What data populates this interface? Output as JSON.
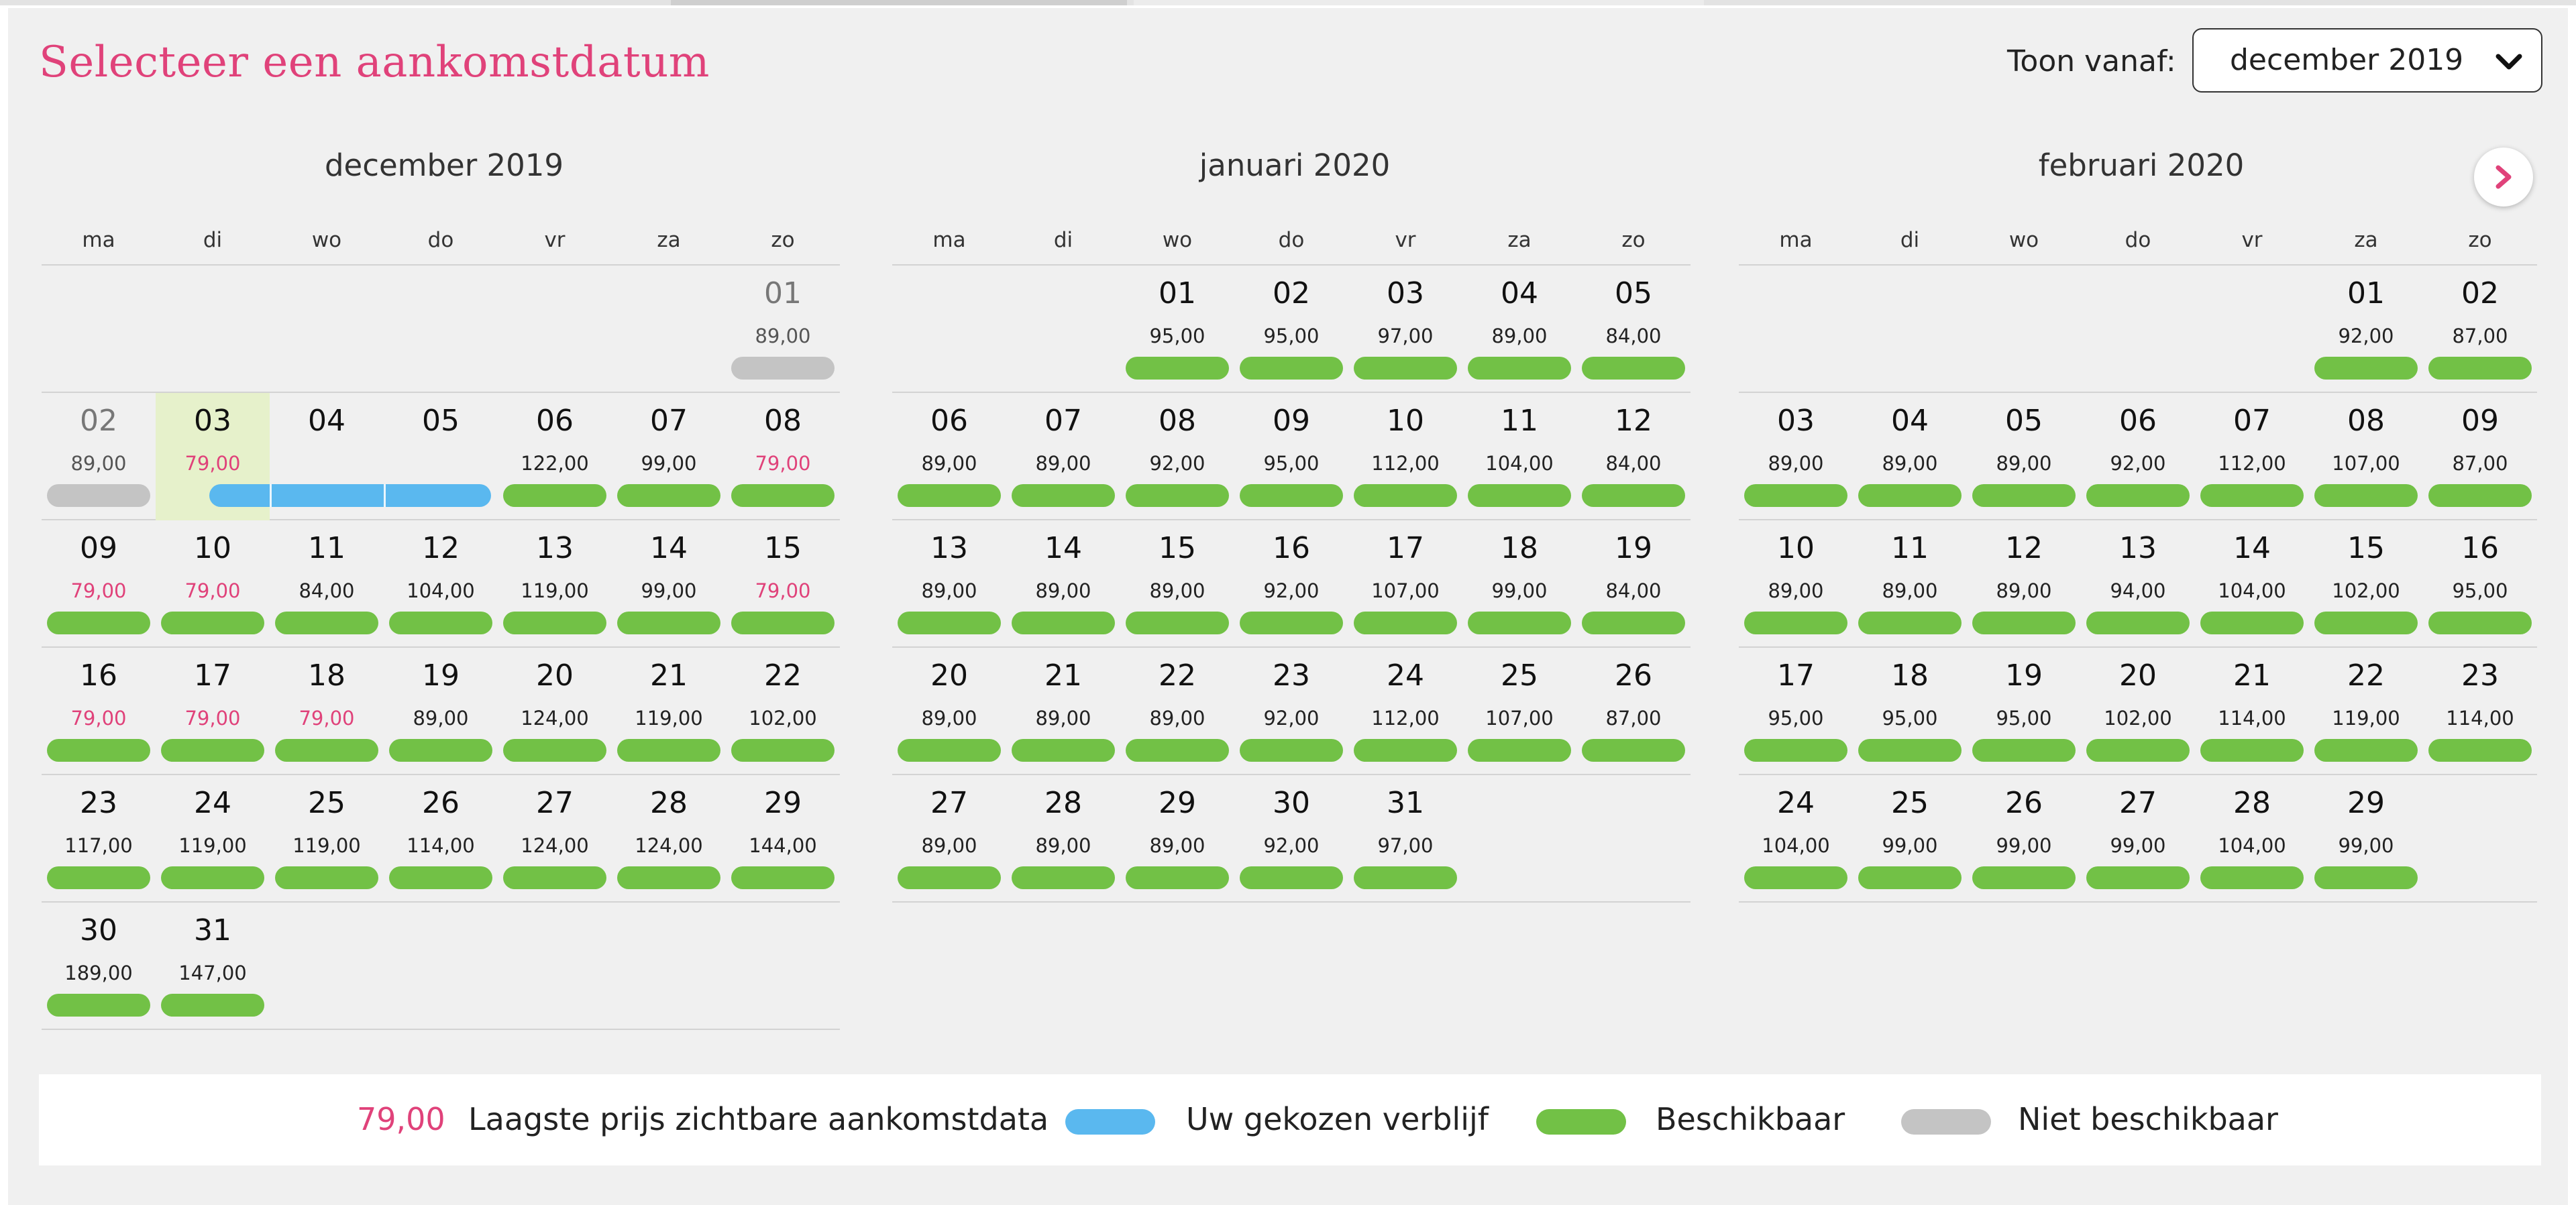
{
  "header": {
    "title": "Selecteer een aankomstdatum",
    "toon_label": "Toon vanaf:",
    "toon_value": "december 2019"
  },
  "weekdays": [
    "ma",
    "di",
    "wo",
    "do",
    "vr",
    "za",
    "zo"
  ],
  "months": [
    {
      "name": "december 2019",
      "days": [
        {
          "d": "01",
          "p": "89,00",
          "s": "na",
          "r": 0,
          "c": 6
        },
        {
          "d": "02",
          "p": "89,00",
          "s": "na",
          "r": 1,
          "c": 0
        },
        {
          "d": "03",
          "p": "79,00",
          "s": "chosen-start",
          "low": true,
          "r": 1,
          "c": 1
        },
        {
          "d": "04",
          "p": "",
          "s": "chosen",
          "r": 1,
          "c": 2
        },
        {
          "d": "05",
          "p": "",
          "s": "chosen",
          "r": 1,
          "c": 3
        },
        {
          "d": "06",
          "p": "122,00",
          "s": "av",
          "r": 1,
          "c": 4
        },
        {
          "d": "07",
          "p": "99,00",
          "s": "av",
          "r": 1,
          "c": 5
        },
        {
          "d": "08",
          "p": "79,00",
          "s": "av",
          "low": true,
          "r": 1,
          "c": 6
        },
        {
          "d": "09",
          "p": "79,00",
          "s": "av",
          "low": true,
          "r": 2,
          "c": 0
        },
        {
          "d": "10",
          "p": "79,00",
          "s": "av",
          "low": true,
          "r": 2,
          "c": 1
        },
        {
          "d": "11",
          "p": "84,00",
          "s": "av",
          "r": 2,
          "c": 2
        },
        {
          "d": "12",
          "p": "104,00",
          "s": "av",
          "r": 2,
          "c": 3
        },
        {
          "d": "13",
          "p": "119,00",
          "s": "av",
          "r": 2,
          "c": 4
        },
        {
          "d": "14",
          "p": "99,00",
          "s": "av",
          "r": 2,
          "c": 5
        },
        {
          "d": "15",
          "p": "79,00",
          "s": "av",
          "low": true,
          "r": 2,
          "c": 6
        },
        {
          "d": "16",
          "p": "79,00",
          "s": "av",
          "low": true,
          "r": 3,
          "c": 0
        },
        {
          "d": "17",
          "p": "79,00",
          "s": "av",
          "low": true,
          "r": 3,
          "c": 1
        },
        {
          "d": "18",
          "p": "79,00",
          "s": "av",
          "low": true,
          "r": 3,
          "c": 2
        },
        {
          "d": "19",
          "p": "89,00",
          "s": "av",
          "r": 3,
          "c": 3
        },
        {
          "d": "20",
          "p": "124,00",
          "s": "av",
          "r": 3,
          "c": 4
        },
        {
          "d": "21",
          "p": "119,00",
          "s": "av",
          "r": 3,
          "c": 5
        },
        {
          "d": "22",
          "p": "102,00",
          "s": "av",
          "r": 3,
          "c": 6
        },
        {
          "d": "23",
          "p": "117,00",
          "s": "av",
          "r": 4,
          "c": 0
        },
        {
          "d": "24",
          "p": "119,00",
          "s": "av",
          "r": 4,
          "c": 1
        },
        {
          "d": "25",
          "p": "119,00",
          "s": "av",
          "r": 4,
          "c": 2
        },
        {
          "d": "26",
          "p": "114,00",
          "s": "av",
          "r": 4,
          "c": 3
        },
        {
          "d": "27",
          "p": "124,00",
          "s": "av",
          "r": 4,
          "c": 4
        },
        {
          "d": "28",
          "p": "124,00",
          "s": "av",
          "r": 4,
          "c": 5
        },
        {
          "d": "29",
          "p": "144,00",
          "s": "av",
          "r": 4,
          "c": 6
        },
        {
          "d": "30",
          "p": "189,00",
          "s": "av",
          "r": 5,
          "c": 0
        },
        {
          "d": "31",
          "p": "147,00",
          "s": "av",
          "r": 5,
          "c": 1
        }
      ]
    },
    {
      "name": "januari 2020",
      "days": [
        {
          "d": "01",
          "p": "95,00",
          "s": "av",
          "r": 0,
          "c": 2
        },
        {
          "d": "02",
          "p": "95,00",
          "s": "av",
          "r": 0,
          "c": 3
        },
        {
          "d": "03",
          "p": "97,00",
          "s": "av",
          "r": 0,
          "c": 4
        },
        {
          "d": "04",
          "p": "89,00",
          "s": "av",
          "r": 0,
          "c": 5
        },
        {
          "d": "05",
          "p": "84,00",
          "s": "av",
          "r": 0,
          "c": 6
        },
        {
          "d": "06",
          "p": "89,00",
          "s": "av",
          "r": 1,
          "c": 0
        },
        {
          "d": "07",
          "p": "89,00",
          "s": "av",
          "r": 1,
          "c": 1
        },
        {
          "d": "08",
          "p": "92,00",
          "s": "av",
          "r": 1,
          "c": 2
        },
        {
          "d": "09",
          "p": "95,00",
          "s": "av",
          "r": 1,
          "c": 3
        },
        {
          "d": "10",
          "p": "112,00",
          "s": "av",
          "r": 1,
          "c": 4
        },
        {
          "d": "11",
          "p": "104,00",
          "s": "av",
          "r": 1,
          "c": 5
        },
        {
          "d": "12",
          "p": "84,00",
          "s": "av",
          "r": 1,
          "c": 6
        },
        {
          "d": "13",
          "p": "89,00",
          "s": "av",
          "r": 2,
          "c": 0
        },
        {
          "d": "14",
          "p": "89,00",
          "s": "av",
          "r": 2,
          "c": 1
        },
        {
          "d": "15",
          "p": "89,00",
          "s": "av",
          "r": 2,
          "c": 2
        },
        {
          "d": "16",
          "p": "92,00",
          "s": "av",
          "r": 2,
          "c": 3
        },
        {
          "d": "17",
          "p": "107,00",
          "s": "av",
          "r": 2,
          "c": 4
        },
        {
          "d": "18",
          "p": "99,00",
          "s": "av",
          "r": 2,
          "c": 5
        },
        {
          "d": "19",
          "p": "84,00",
          "s": "av",
          "r": 2,
          "c": 6
        },
        {
          "d": "20",
          "p": "89,00",
          "s": "av",
          "r": 3,
          "c": 0
        },
        {
          "d": "21",
          "p": "89,00",
          "s": "av",
          "r": 3,
          "c": 1
        },
        {
          "d": "22",
          "p": "89,00",
          "s": "av",
          "r": 3,
          "c": 2
        },
        {
          "d": "23",
          "p": "92,00",
          "s": "av",
          "r": 3,
          "c": 3
        },
        {
          "d": "24",
          "p": "112,00",
          "s": "av",
          "r": 3,
          "c": 4
        },
        {
          "d": "25",
          "p": "107,00",
          "s": "av",
          "r": 3,
          "c": 5
        },
        {
          "d": "26",
          "p": "87,00",
          "s": "av",
          "r": 3,
          "c": 6
        },
        {
          "d": "27",
          "p": "89,00",
          "s": "av",
          "r": 4,
          "c": 0
        },
        {
          "d": "28",
          "p": "89,00",
          "s": "av",
          "r": 4,
          "c": 1
        },
        {
          "d": "29",
          "p": "89,00",
          "s": "av",
          "r": 4,
          "c": 2
        },
        {
          "d": "30",
          "p": "92,00",
          "s": "av",
          "r": 4,
          "c": 3
        },
        {
          "d": "31",
          "p": "97,00",
          "s": "av",
          "r": 4,
          "c": 4
        }
      ]
    },
    {
      "name": "februari 2020",
      "days": [
        {
          "d": "01",
          "p": "92,00",
          "s": "av",
          "r": 0,
          "c": 5
        },
        {
          "d": "02",
          "p": "87,00",
          "s": "av",
          "r": 0,
          "c": 6
        },
        {
          "d": "03",
          "p": "89,00",
          "s": "av",
          "r": 1,
          "c": 0
        },
        {
          "d": "04",
          "p": "89,00",
          "s": "av",
          "r": 1,
          "c": 1
        },
        {
          "d": "05",
          "p": "89,00",
          "s": "av",
          "r": 1,
          "c": 2
        },
        {
          "d": "06",
          "p": "92,00",
          "s": "av",
          "r": 1,
          "c": 3
        },
        {
          "d": "07",
          "p": "112,00",
          "s": "av",
          "r": 1,
          "c": 4
        },
        {
          "d": "08",
          "p": "107,00",
          "s": "av",
          "r": 1,
          "c": 5
        },
        {
          "d": "09",
          "p": "87,00",
          "s": "av",
          "r": 1,
          "c": 6
        },
        {
          "d": "10",
          "p": "89,00",
          "s": "av",
          "r": 2,
          "c": 0
        },
        {
          "d": "11",
          "p": "89,00",
          "s": "av",
          "r": 2,
          "c": 1
        },
        {
          "d": "12",
          "p": "89,00",
          "s": "av",
          "r": 2,
          "c": 2
        },
        {
          "d": "13",
          "p": "94,00",
          "s": "av",
          "r": 2,
          "c": 3
        },
        {
          "d": "14",
          "p": "104,00",
          "s": "av",
          "r": 2,
          "c": 4
        },
        {
          "d": "15",
          "p": "102,00",
          "s": "av",
          "r": 2,
          "c": 5
        },
        {
          "d": "16",
          "p": "95,00",
          "s": "av",
          "r": 2,
          "c": 6
        },
        {
          "d": "17",
          "p": "95,00",
          "s": "av",
          "r": 3,
          "c": 0
        },
        {
          "d": "18",
          "p": "95,00",
          "s": "av",
          "r": 3,
          "c": 1
        },
        {
          "d": "19",
          "p": "95,00",
          "s": "av",
          "r": 3,
          "c": 2
        },
        {
          "d": "20",
          "p": "102,00",
          "s": "av",
          "r": 3,
          "c": 3
        },
        {
          "d": "21",
          "p": "114,00",
          "s": "av",
          "r": 3,
          "c": 4
        },
        {
          "d": "22",
          "p": "119,00",
          "s": "av",
          "r": 3,
          "c": 5
        },
        {
          "d": "23",
          "p": "114,00",
          "s": "av",
          "r": 3,
          "c": 6
        },
        {
          "d": "24",
          "p": "104,00",
          "s": "av",
          "r": 4,
          "c": 0
        },
        {
          "d": "25",
          "p": "99,00",
          "s": "av",
          "r": 4,
          "c": 1
        },
        {
          "d": "26",
          "p": "99,00",
          "s": "av",
          "r": 4,
          "c": 2
        },
        {
          "d": "27",
          "p": "99,00",
          "s": "av",
          "r": 4,
          "c": 3
        },
        {
          "d": "28",
          "p": "104,00",
          "s": "av",
          "r": 4,
          "c": 4
        },
        {
          "d": "29",
          "p": "99,00",
          "s": "av",
          "r": 4,
          "c": 5
        }
      ]
    }
  ],
  "legend": {
    "low_price": "79,00",
    "low_label": "Laagste prijs zichtbare aankomstdata",
    "chosen_label": "Uw gekozen verblijf",
    "available_label": "Beschikbaar",
    "unavailable_label": "Niet beschikbaar"
  },
  "icons": {
    "select": "chevron-down-icon",
    "next": "chevron-right-icon"
  },
  "colors": {
    "accent": "#e0427a",
    "available": "#72c146",
    "unavailable": "#c4c4c4",
    "chosen": "#5ab8ef",
    "chosen_bg": "#e6f1cb"
  }
}
